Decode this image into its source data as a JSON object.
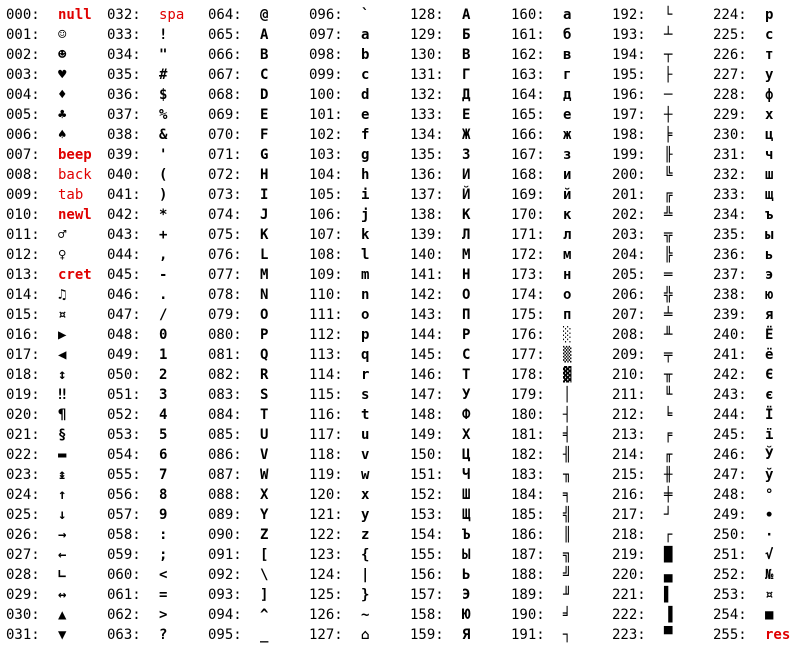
{
  "title": "",
  "control_color": "#e00000",
  "columns": [
    [
      {
        "code": "000:",
        "char": "null",
        "ctl": true
      },
      {
        "code": "001:",
        "char": "☺"
      },
      {
        "code": "002:",
        "char": "☻"
      },
      {
        "code": "003:",
        "char": "♥"
      },
      {
        "code": "004:",
        "char": "♦"
      },
      {
        "code": "005:",
        "char": "♣"
      },
      {
        "code": "006:",
        "char": "♠"
      },
      {
        "code": "007:",
        "char": "beep",
        "ctl": true
      },
      {
        "code": "008:",
        "char": "back",
        "ctl": true,
        "thin": true
      },
      {
        "code": "009:",
        "char": "tab",
        "ctl": true,
        "thin": true
      },
      {
        "code": "010:",
        "char": "newl",
        "ctl": true
      },
      {
        "code": "011:",
        "char": "♂"
      },
      {
        "code": "012:",
        "char": "♀"
      },
      {
        "code": "013:",
        "char": "cret",
        "ctl": true
      },
      {
        "code": "014:",
        "char": "♫"
      },
      {
        "code": "015:",
        "char": "¤"
      },
      {
        "code": "016:",
        "char": "▶"
      },
      {
        "code": "017:",
        "char": "◀"
      },
      {
        "code": "018:",
        "char": "↕"
      },
      {
        "code": "019:",
        "char": "‼"
      },
      {
        "code": "020:",
        "char": "¶"
      },
      {
        "code": "021:",
        "char": "§"
      },
      {
        "code": "022:",
        "char": "▬"
      },
      {
        "code": "023:",
        "char": "↨"
      },
      {
        "code": "024:",
        "char": "↑"
      },
      {
        "code": "025:",
        "char": "↓"
      },
      {
        "code": "026:",
        "char": "→"
      },
      {
        "code": "027:",
        "char": "←"
      },
      {
        "code": "028:",
        "char": "∟"
      },
      {
        "code": "029:",
        "char": "↔"
      },
      {
        "code": "030:",
        "char": "▲"
      },
      {
        "code": "031:",
        "char": "▼"
      }
    ],
    [
      {
        "code": "032:",
        "char": "spa",
        "ctl": true,
        "thin": true
      },
      {
        "code": "033:",
        "char": "!"
      },
      {
        "code": "034:",
        "char": "\""
      },
      {
        "code": "035:",
        "char": "#"
      },
      {
        "code": "036:",
        "char": "$"
      },
      {
        "code": "037:",
        "char": "%"
      },
      {
        "code": "038:",
        "char": "&"
      },
      {
        "code": "039:",
        "char": "'"
      },
      {
        "code": "040:",
        "char": "("
      },
      {
        "code": "041:",
        "char": ")"
      },
      {
        "code": "042:",
        "char": "*"
      },
      {
        "code": "043:",
        "char": "+"
      },
      {
        "code": "044:",
        "char": ","
      },
      {
        "code": "045:",
        "char": "-"
      },
      {
        "code": "046:",
        "char": "."
      },
      {
        "code": "047:",
        "char": "/"
      },
      {
        "code": "048:",
        "char": "0"
      },
      {
        "code": "049:",
        "char": "1"
      },
      {
        "code": "050:",
        "char": "2"
      },
      {
        "code": "051:",
        "char": "3"
      },
      {
        "code": "052:",
        "char": "4"
      },
      {
        "code": "053:",
        "char": "5"
      },
      {
        "code": "054:",
        "char": "6"
      },
      {
        "code": "055:",
        "char": "7"
      },
      {
        "code": "056:",
        "char": "8"
      },
      {
        "code": "057:",
        "char": "9"
      },
      {
        "code": "058:",
        "char": ":"
      },
      {
        "code": "059:",
        "char": ";"
      },
      {
        "code": "060:",
        "char": "<"
      },
      {
        "code": "061:",
        "char": "="
      },
      {
        "code": "062:",
        "char": ">"
      },
      {
        "code": "063:",
        "char": "?"
      }
    ],
    [
      {
        "code": "064:",
        "char": "@"
      },
      {
        "code": "065:",
        "char": "A"
      },
      {
        "code": "066:",
        "char": "B"
      },
      {
        "code": "067:",
        "char": "C"
      },
      {
        "code": "068:",
        "char": "D"
      },
      {
        "code": "069:",
        "char": "E"
      },
      {
        "code": "070:",
        "char": "F"
      },
      {
        "code": "071:",
        "char": "G"
      },
      {
        "code": "072:",
        "char": "H"
      },
      {
        "code": "073:",
        "char": "I"
      },
      {
        "code": "074:",
        "char": "J"
      },
      {
        "code": "075:",
        "char": "K"
      },
      {
        "code": "076:",
        "char": "L"
      },
      {
        "code": "077:",
        "char": "M"
      },
      {
        "code": "078:",
        "char": "N"
      },
      {
        "code": "079:",
        "char": "O"
      },
      {
        "code": "080:",
        "char": "P"
      },
      {
        "code": "081:",
        "char": "Q"
      },
      {
        "code": "082:",
        "char": "R"
      },
      {
        "code": "083:",
        "char": "S"
      },
      {
        "code": "084:",
        "char": "T"
      },
      {
        "code": "085:",
        "char": "U"
      },
      {
        "code": "086:",
        "char": "V"
      },
      {
        "code": "087:",
        "char": "W"
      },
      {
        "code": "088:",
        "char": "X"
      },
      {
        "code": "089:",
        "char": "Y"
      },
      {
        "code": "090:",
        "char": "Z"
      },
      {
        "code": "091:",
        "char": "["
      },
      {
        "code": "092:",
        "char": "\\"
      },
      {
        "code": "093:",
        "char": "]"
      },
      {
        "code": "094:",
        "char": "^"
      },
      {
        "code": "095:",
        "char": "_"
      }
    ],
    [
      {
        "code": "096:",
        "char": "`"
      },
      {
        "code": "097:",
        "char": "a"
      },
      {
        "code": "098:",
        "char": "b"
      },
      {
        "code": "099:",
        "char": "c"
      },
      {
        "code": "100:",
        "char": "d"
      },
      {
        "code": "101:",
        "char": "e"
      },
      {
        "code": "102:",
        "char": "f"
      },
      {
        "code": "103:",
        "char": "g"
      },
      {
        "code": "104:",
        "char": "h"
      },
      {
        "code": "105:",
        "char": "i"
      },
      {
        "code": "106:",
        "char": "j"
      },
      {
        "code": "107:",
        "char": "k"
      },
      {
        "code": "108:",
        "char": "l"
      },
      {
        "code": "109:",
        "char": "m"
      },
      {
        "code": "110:",
        "char": "n"
      },
      {
        "code": "111:",
        "char": "o"
      },
      {
        "code": "112:",
        "char": "p"
      },
      {
        "code": "113:",
        "char": "q"
      },
      {
        "code": "114:",
        "char": "r"
      },
      {
        "code": "115:",
        "char": "s"
      },
      {
        "code": "116:",
        "char": "t"
      },
      {
        "code": "117:",
        "char": "u"
      },
      {
        "code": "118:",
        "char": "v"
      },
      {
        "code": "119:",
        "char": "w"
      },
      {
        "code": "120:",
        "char": "x"
      },
      {
        "code": "121:",
        "char": "y"
      },
      {
        "code": "122:",
        "char": "z"
      },
      {
        "code": "123:",
        "char": "{"
      },
      {
        "code": "124:",
        "char": "|"
      },
      {
        "code": "125:",
        "char": "}"
      },
      {
        "code": "126:",
        "char": "~"
      },
      {
        "code": "127:",
        "char": "⌂"
      }
    ],
    [
      {
        "code": "128:",
        "char": "А"
      },
      {
        "code": "129:",
        "char": "Б"
      },
      {
        "code": "130:",
        "char": "В"
      },
      {
        "code": "131:",
        "char": "Г"
      },
      {
        "code": "132:",
        "char": "Д"
      },
      {
        "code": "133:",
        "char": "Е"
      },
      {
        "code": "134:",
        "char": "Ж"
      },
      {
        "code": "135:",
        "char": "З"
      },
      {
        "code": "136:",
        "char": "И"
      },
      {
        "code": "137:",
        "char": "Й"
      },
      {
        "code": "138:",
        "char": "К"
      },
      {
        "code": "139:",
        "char": "Л"
      },
      {
        "code": "140:",
        "char": "М"
      },
      {
        "code": "141:",
        "char": "Н"
      },
      {
        "code": "142:",
        "char": "О"
      },
      {
        "code": "143:",
        "char": "П"
      },
      {
        "code": "144:",
        "char": "Р"
      },
      {
        "code": "145:",
        "char": "С"
      },
      {
        "code": "146:",
        "char": "Т"
      },
      {
        "code": "147:",
        "char": "У"
      },
      {
        "code": "148:",
        "char": "Ф"
      },
      {
        "code": "149:",
        "char": "Х"
      },
      {
        "code": "150:",
        "char": "Ц"
      },
      {
        "code": "151:",
        "char": "Ч"
      },
      {
        "code": "152:",
        "char": "Ш"
      },
      {
        "code": "153:",
        "char": "Щ"
      },
      {
        "code": "154:",
        "char": "Ъ"
      },
      {
        "code": "155:",
        "char": "Ы"
      },
      {
        "code": "156:",
        "char": "Ь"
      },
      {
        "code": "157:",
        "char": "Э"
      },
      {
        "code": "158:",
        "char": "Ю"
      },
      {
        "code": "159:",
        "char": "Я"
      }
    ],
    [
      {
        "code": "160:",
        "char": "а"
      },
      {
        "code": "161:",
        "char": "б"
      },
      {
        "code": "162:",
        "char": "в"
      },
      {
        "code": "163:",
        "char": "г"
      },
      {
        "code": "164:",
        "char": "д"
      },
      {
        "code": "165:",
        "char": "е"
      },
      {
        "code": "166:",
        "char": "ж"
      },
      {
        "code": "167:",
        "char": "з"
      },
      {
        "code": "168:",
        "char": "и"
      },
      {
        "code": "169:",
        "char": "й"
      },
      {
        "code": "170:",
        "char": "к"
      },
      {
        "code": "171:",
        "char": "л"
      },
      {
        "code": "172:",
        "char": "м"
      },
      {
        "code": "173:",
        "char": "н"
      },
      {
        "code": "174:",
        "char": "о"
      },
      {
        "code": "175:",
        "char": "п"
      },
      {
        "code": "176:",
        "char": "░"
      },
      {
        "code": "177:",
        "char": "▒"
      },
      {
        "code": "178:",
        "char": "▓"
      },
      {
        "code": "179:",
        "char": "│"
      },
      {
        "code": "180:",
        "char": "┤"
      },
      {
        "code": "181:",
        "char": "╡"
      },
      {
        "code": "182:",
        "char": "╢"
      },
      {
        "code": "183:",
        "char": "╖"
      },
      {
        "code": "184:",
        "char": "╕"
      },
      {
        "code": "185:",
        "char": "╣"
      },
      {
        "code": "186:",
        "char": "║"
      },
      {
        "code": "187:",
        "char": "╗"
      },
      {
        "code": "188:",
        "char": "╝"
      },
      {
        "code": "189:",
        "char": "╜"
      },
      {
        "code": "190:",
        "char": "╛"
      },
      {
        "code": "191:",
        "char": "┐"
      }
    ],
    [
      {
        "code": "192:",
        "char": "└"
      },
      {
        "code": "193:",
        "char": "┴"
      },
      {
        "code": "194:",
        "char": "┬"
      },
      {
        "code": "195:",
        "char": "├"
      },
      {
        "code": "196:",
        "char": "─"
      },
      {
        "code": "197:",
        "char": "┼"
      },
      {
        "code": "198:",
        "char": "╞"
      },
      {
        "code": "199:",
        "char": "╟"
      },
      {
        "code": "200:",
        "char": "╚"
      },
      {
        "code": "201:",
        "char": "╔"
      },
      {
        "code": "202:",
        "char": "╩"
      },
      {
        "code": "203:",
        "char": "╦"
      },
      {
        "code": "204:",
        "char": "╠"
      },
      {
        "code": "205:",
        "char": "═"
      },
      {
        "code": "206:",
        "char": "╬"
      },
      {
        "code": "207:",
        "char": "╧"
      },
      {
        "code": "208:",
        "char": "╨"
      },
      {
        "code": "209:",
        "char": "╤"
      },
      {
        "code": "210:",
        "char": "╥"
      },
      {
        "code": "211:",
        "char": "╙"
      },
      {
        "code": "212:",
        "char": "╘"
      },
      {
        "code": "213:",
        "char": "╒"
      },
      {
        "code": "214:",
        "char": "╓"
      },
      {
        "code": "215:",
        "char": "╫"
      },
      {
        "code": "216:",
        "char": "╪"
      },
      {
        "code": "217:",
        "char": "┘"
      },
      {
        "code": "218:",
        "char": "┌"
      },
      {
        "code": "219:",
        "char": "█"
      },
      {
        "code": "220:",
        "char": "▄"
      },
      {
        "code": "221:",
        "char": "▌"
      },
      {
        "code": "222:",
        "char": "▐"
      },
      {
        "code": "223:",
        "char": "▀"
      }
    ],
    [
      {
        "code": "224:",
        "char": "р"
      },
      {
        "code": "225:",
        "char": "с"
      },
      {
        "code": "226:",
        "char": "т"
      },
      {
        "code": "227:",
        "char": "у"
      },
      {
        "code": "228:",
        "char": "ф"
      },
      {
        "code": "229:",
        "char": "х"
      },
      {
        "code": "230:",
        "char": "ц"
      },
      {
        "code": "231:",
        "char": "ч"
      },
      {
        "code": "232:",
        "char": "ш"
      },
      {
        "code": "233:",
        "char": "щ"
      },
      {
        "code": "234:",
        "char": "ъ"
      },
      {
        "code": "235:",
        "char": "ы"
      },
      {
        "code": "236:",
        "char": "ь"
      },
      {
        "code": "237:",
        "char": "э"
      },
      {
        "code": "238:",
        "char": "ю"
      },
      {
        "code": "239:",
        "char": "я"
      },
      {
        "code": "240:",
        "char": "Ё"
      },
      {
        "code": "241:",
        "char": "ё"
      },
      {
        "code": "242:",
        "char": "Є"
      },
      {
        "code": "243:",
        "char": "є"
      },
      {
        "code": "244:",
        "char": "Ї"
      },
      {
        "code": "245:",
        "char": "ї"
      },
      {
        "code": "246:",
        "char": "Ў"
      },
      {
        "code": "247:",
        "char": "ў"
      },
      {
        "code": "248:",
        "char": "°"
      },
      {
        "code": "249:",
        "char": "∙"
      },
      {
        "code": "250:",
        "char": "·"
      },
      {
        "code": "251:",
        "char": "√"
      },
      {
        "code": "252:",
        "char": "№"
      },
      {
        "code": "253:",
        "char": "¤"
      },
      {
        "code": "254:",
        "char": "■"
      },
      {
        "code": "255:",
        "char": "res",
        "ctl": true
      }
    ]
  ]
}
